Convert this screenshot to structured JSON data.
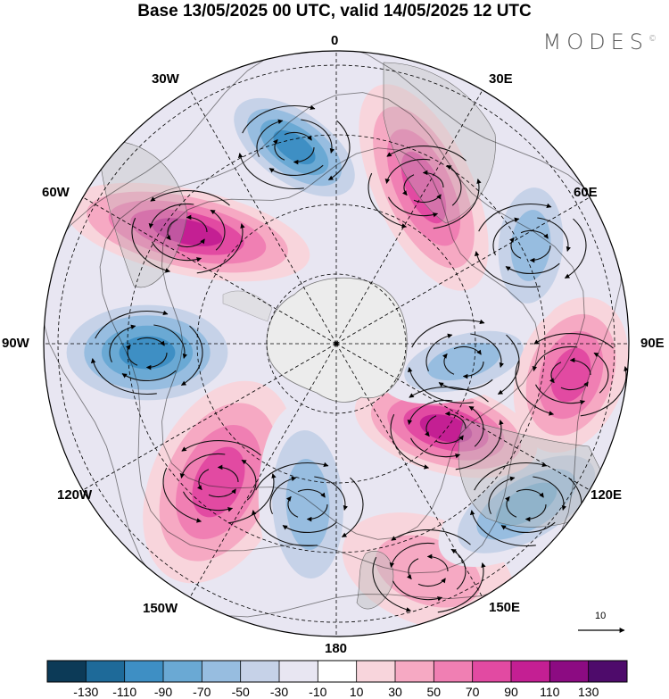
{
  "title": "Base 13/05/2025 00 UTC, valid 14/05/2025 12 UTC",
  "brand": "MODES",
  "brand_mark": "©",
  "map": {
    "projection": "south-polar-stereographic",
    "longitude_labels": {
      "top": "0",
      "top_right": "30E",
      "right_upper": "60E",
      "right": "90E",
      "right_lower": "120E",
      "bottom_right": "150E",
      "bottom": "180",
      "bottom_left": "150W",
      "left_lower": "120W",
      "left": "90W",
      "left_upper": "60W",
      "top_left": "30W"
    },
    "reference_vector_label": "10",
    "field_description": "wavenumber-5 pattern of alternating positive and negative anomalies with streamlines"
  },
  "colorbar": {
    "colors": [
      "#0c3a57",
      "#1e6a99",
      "#3e8fc4",
      "#6aa9d4",
      "#97bde0",
      "#c6d2e8",
      "#e8e6f2",
      "#ffffff",
      "#f8d5dc",
      "#f6a9c3",
      "#f07fb3",
      "#e24aa2",
      "#c41f93",
      "#8c0b82",
      "#4e0b6b"
    ],
    "tick_labels": [
      "-130",
      "-110",
      "-90",
      "-70",
      "-50",
      "-30",
      "-10",
      "10",
      "30",
      "50",
      "70",
      "90",
      "110",
      "130"
    ]
  },
  "anomalies": [
    {
      "sign": "neg",
      "level": 5
    },
    {
      "sign": "pos",
      "level": 5
    },
    {
      "sign": "neg",
      "level": 5
    },
    {
      "sign": "pos",
      "level": 4
    },
    {
      "sign": "neg",
      "level": 3
    },
    {
      "sign": "pos",
      "level": 2
    },
    {
      "sign": "neg",
      "level": 4
    },
    {
      "sign": "pos",
      "level": 5
    },
    {
      "sign": "neg",
      "level": 3
    },
    {
      "sign": "pos",
      "level": 4
    }
  ]
}
